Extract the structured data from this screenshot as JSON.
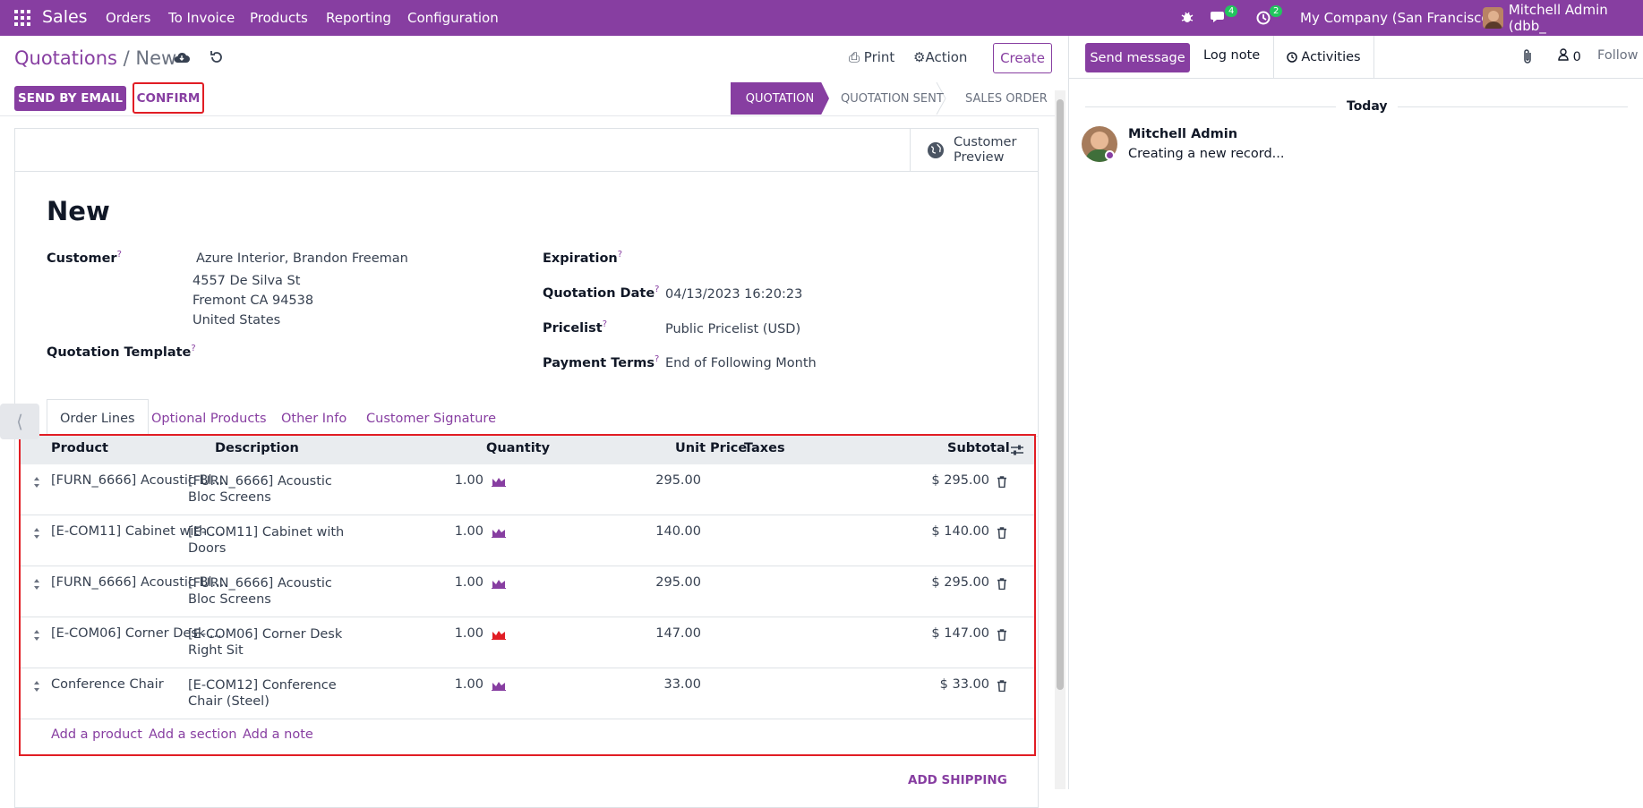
{
  "nav": {
    "brand": "Sales",
    "menu": [
      "Orders",
      "To Invoice",
      "Products",
      "Reporting",
      "Configuration"
    ],
    "messages_count": "4",
    "activities_count": "2",
    "company": "My Company (San Francisco)",
    "user": "Mitchell Admin (dbb_"
  },
  "control": {
    "breadcrumb_parent": "Quotations",
    "breadcrumb_sep": "/",
    "breadcrumb_current": "New",
    "print": "Print",
    "action": "Action",
    "create": "Create",
    "send_email": "SEND BY EMAIL",
    "confirm": "CONFIRM",
    "stages": [
      "QUOTATION",
      "QUOTATION SENT",
      "SALES ORDER"
    ]
  },
  "form": {
    "customer_preview": "Customer Preview",
    "title": "New",
    "customer_label": "Customer",
    "customer_name": "Azure Interior, Brandon Freeman",
    "address_1": "4557 De Silva St",
    "address_2": "Fremont CA 94538",
    "address_3": "United States",
    "template_label": "Quotation Template",
    "expiration_label": "Expiration",
    "date_label": "Quotation Date",
    "date_value": "04/13/2023 16:20:23",
    "pricelist_label": "Pricelist",
    "pricelist_value": "Public Pricelist (USD)",
    "terms_label": "Payment Terms",
    "terms_value": "End of Following Month",
    "help_mark": "?"
  },
  "tabs": [
    "Order Lines",
    "Optional Products",
    "Other Info",
    "Customer Signature"
  ],
  "table": {
    "headers": [
      "Product",
      "Description",
      "Quantity",
      "Unit Price",
      "Taxes",
      "Subtotal"
    ],
    "rows": [
      {
        "product": "[FURN_6666] Acoustic Bl...",
        "desc1": "[FURN_6666] Acoustic",
        "desc2": "Bloc Screens",
        "qty": "1.00",
        "price": "295.00",
        "subtotal": "$ 295.00",
        "forecast_color": "#873ea1"
      },
      {
        "product": "[E-COM11] Cabinet with ...",
        "desc1": "[E-COM11] Cabinet with",
        "desc2": "Doors",
        "qty": "1.00",
        "price": "140.00",
        "subtotal": "$ 140.00",
        "forecast_color": "#873ea1"
      },
      {
        "product": "[FURN_6666] Acoustic Bl...",
        "desc1": "[FURN_6666] Acoustic",
        "desc2": "Bloc Screens",
        "qty": "1.00",
        "price": "295.00",
        "subtotal": "$ 295.00",
        "forecast_color": "#873ea1"
      },
      {
        "product": "[E-COM06] Corner Desk ...",
        "desc1": "[E-COM06] Corner Desk",
        "desc2": "Right Sit",
        "qty": "1.00",
        "price": "147.00",
        "subtotal": "$ 147.00",
        "forecast_color": "#e11d24"
      },
      {
        "product": "Conference Chair",
        "desc1": "[E-COM12] Conference",
        "desc2": "Chair (Steel)",
        "qty": "1.00",
        "price": "33.00",
        "subtotal": "$ 33.00",
        "forecast_color": "#873ea1"
      }
    ],
    "add_product": "Add a product",
    "add_section": "Add a section",
    "add_note": "Add a note"
  },
  "add_shipping": "ADD SHIPPING",
  "chatter": {
    "send_message": "Send message",
    "log_note": "Log note",
    "activities": "Activities",
    "followers_count": "0",
    "follow": "Follow",
    "today": "Today",
    "author": "Mitchell Admin",
    "message": "Creating a new record..."
  },
  "colors": {
    "brand": "#873ea1",
    "highlight": "#e11d24",
    "badge": "#22c55e"
  }
}
